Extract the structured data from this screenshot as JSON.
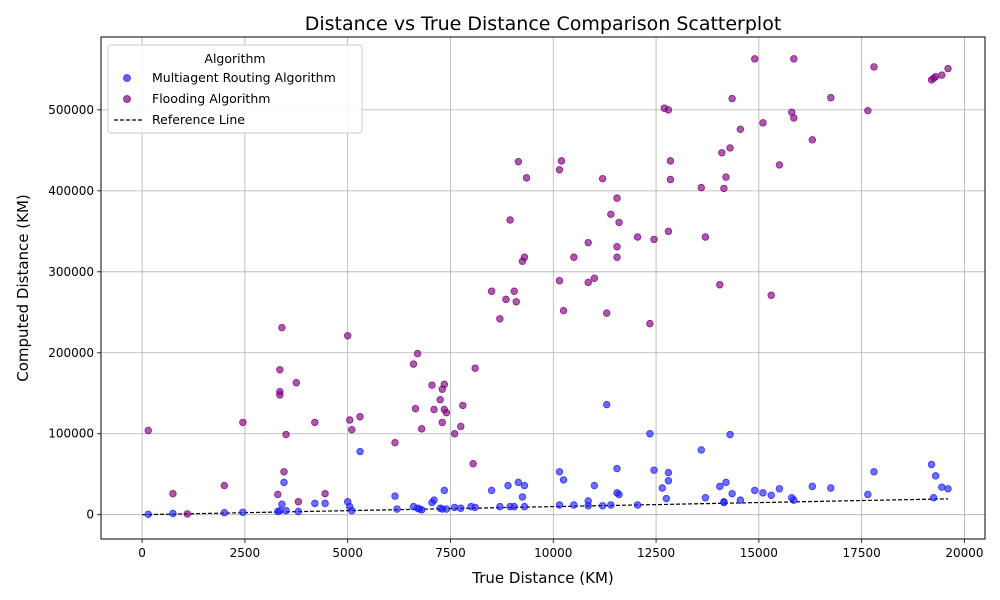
{
  "chart_data": {
    "type": "scatter",
    "title": "Distance vs True Distance Comparison Scatterplot",
    "xlabel": "True Distance (KM)",
    "ylabel": "Computed Distance (KM)",
    "xlim": [
      -1000,
      20500
    ],
    "ylim": [
      -30000,
      590000
    ],
    "xticks": [
      0,
      2500,
      5000,
      7500,
      10000,
      12500,
      15000,
      17500,
      20000
    ],
    "yticks": [
      0,
      100000,
      200000,
      300000,
      400000,
      500000
    ],
    "grid": true,
    "legend": {
      "title": "Algorithm",
      "position": "top-left",
      "entries": [
        "Multiagent Routing Algorithm",
        "Flooding Algorithm",
        "Reference Line"
      ]
    },
    "series": [
      {
        "name": "Multiagent Routing Algorithm",
        "kind": "scatter",
        "color": "#1f1fff",
        "x": [
          150,
          750,
          2000,
          2450,
          3300,
          3350,
          3400,
          3450,
          3500,
          3800,
          4200,
          4450,
          5000,
          5050,
          5100,
          5300,
          6150,
          6200,
          6600,
          6700,
          6750,
          6800,
          7050,
          7100,
          7250,
          7300,
          7350,
          7400,
          7600,
          7750,
          8000,
          8100,
          8500,
          8700,
          8900,
          8950,
          9050,
          9150,
          9250,
          9300,
          9300,
          10150,
          10150,
          10250,
          10500,
          10850,
          10850,
          11000,
          11200,
          11300,
          11400,
          11550,
          11550,
          11600,
          12050,
          12350,
          12450,
          12650,
          12750,
          12800,
          12800,
          13600,
          13700,
          14050,
          14150,
          14150,
          14200,
          14300,
          14350,
          14550,
          14900,
          15100,
          15300,
          15500,
          15800,
          15850,
          16300,
          16750,
          17650,
          17800,
          19200,
          19250,
          19300,
          19450,
          19600
        ],
        "y": [
          500,
          1500,
          2500,
          3000,
          4000,
          5000,
          13000,
          40000,
          5000,
          4000,
          14000,
          14000,
          16000,
          10000,
          5000,
          78000,
          23000,
          7000,
          10000,
          8000,
          7000,
          6000,
          15000,
          18000,
          8000,
          7000,
          30000,
          7000,
          9000,
          8000,
          10000,
          9000,
          30000,
          10000,
          36000,
          10000,
          10000,
          40000,
          22000,
          36000,
          10000,
          53000,
          12000,
          43000,
          12000,
          17000,
          11000,
          36000,
          11000,
          136000,
          12000,
          57000,
          27000,
          25000,
          12000,
          100000,
          55000,
          33000,
          20000,
          52000,
          42000,
          80000,
          21000,
          35000,
          16000,
          15000,
          40000,
          99000,
          26000,
          18000,
          30000,
          27000,
          24000,
          32000,
          21000,
          18000,
          35000,
          33000,
          25000,
          53000,
          62000,
          21000,
          48000,
          34000,
          32000
        ]
      },
      {
        "name": "Flooding Algorithm",
        "kind": "scatter",
        "color": "#800080",
        "x": [
          150,
          750,
          1100,
          2000,
          2450,
          3300,
          3350,
          3350,
          3350,
          3400,
          3450,
          3500,
          3750,
          3800,
          4200,
          4450,
          5000,
          5050,
          5100,
          5300,
          6150,
          6600,
          6650,
          6700,
          6800,
          7050,
          7100,
          7250,
          7300,
          7300,
          7350,
          7350,
          7400,
          7600,
          7750,
          7800,
          8050,
          8100,
          8500,
          8700,
          8850,
          8950,
          9050,
          9100,
          9150,
          9250,
          9300,
          9350,
          10150,
          10150,
          10200,
          10250,
          10500,
          10850,
          10850,
          11000,
          11200,
          11300,
          11400,
          11550,
          11550,
          11550,
          11600,
          12050,
          12350,
          12450,
          12700,
          12800,
          12800,
          12850,
          12850,
          13600,
          13700,
          14050,
          14100,
          14150,
          14200,
          14300,
          14350,
          14550,
          14900,
          15100,
          15300,
          15500,
          15800,
          15850,
          15850,
          16300,
          16750,
          17650,
          17800,
          19200,
          19250,
          19300,
          19450,
          19600
        ],
        "y": [
          104000,
          26000,
          1000,
          36000,
          114000,
          25000,
          152000,
          148000,
          179000,
          231000,
          53000,
          99000,
          163000,
          16000,
          114000,
          26000,
          221000,
          117000,
          105000,
          121000,
          89000,
          186000,
          131000,
          199000,
          106000,
          160000,
          130000,
          142000,
          114000,
          155000,
          130000,
          161000,
          126000,
          100000,
          109000,
          135000,
          63000,
          181000,
          276000,
          242000,
          266000,
          364000,
          276000,
          263000,
          436000,
          313000,
          318000,
          416000,
          426000,
          289000,
          437000,
          252000,
          318000,
          336000,
          287000,
          292000,
          415000,
          249000,
          371000,
          391000,
          331000,
          318000,
          361000,
          343000,
          236000,
          340000,
          502000,
          500000,
          350000,
          414000,
          437000,
          404000,
          343000,
          284000,
          447000,
          403000,
          417000,
          453000,
          514000,
          476000,
          563000,
          484000,
          271000,
          432000,
          497000,
          490000,
          563000,
          463000,
          515000,
          499000,
          553000,
          537000,
          539000,
          541000,
          543000,
          551000
        ]
      },
      {
        "name": "Reference Line",
        "kind": "line",
        "style": "dashed",
        "color": "#000000",
        "x": [
          0,
          19600
        ],
        "y": [
          0,
          19600
        ]
      }
    ]
  }
}
